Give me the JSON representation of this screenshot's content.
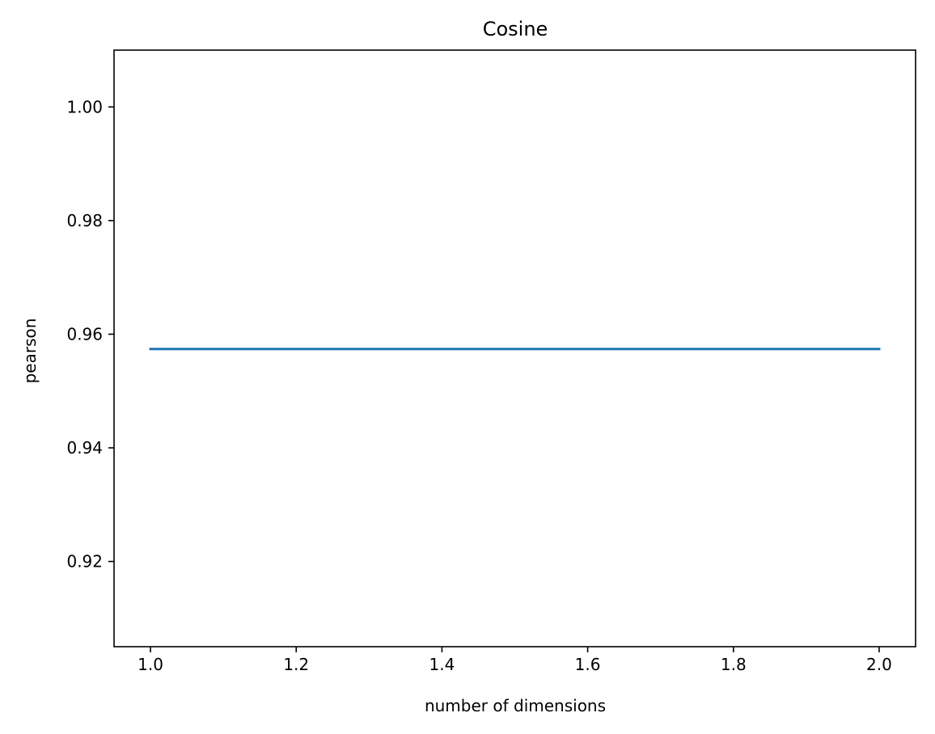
{
  "chart_data": {
    "type": "line",
    "title": "Cosine",
    "xlabel": "number of dimensions",
    "ylabel": "pearson",
    "xlim": [
      0.95,
      2.05
    ],
    "ylim": [
      0.905,
      1.01
    ],
    "x_ticks": [
      1.0,
      1.2,
      1.4,
      1.6,
      1.8,
      2.0
    ],
    "x_tick_labels": [
      "1.0",
      "1.2",
      "1.4",
      "1.6",
      "1.8",
      "2.0"
    ],
    "y_ticks": [
      0.92,
      0.94,
      0.96,
      0.98,
      1.0
    ],
    "y_tick_labels": [
      "0.92",
      "0.94",
      "0.96",
      "0.98",
      "1.00"
    ],
    "grid": false,
    "series": [
      {
        "x": [
          1.0,
          2.0
        ],
        "y": [
          0.9574,
          0.9574
        ],
        "color": "#1f77b4"
      }
    ]
  }
}
